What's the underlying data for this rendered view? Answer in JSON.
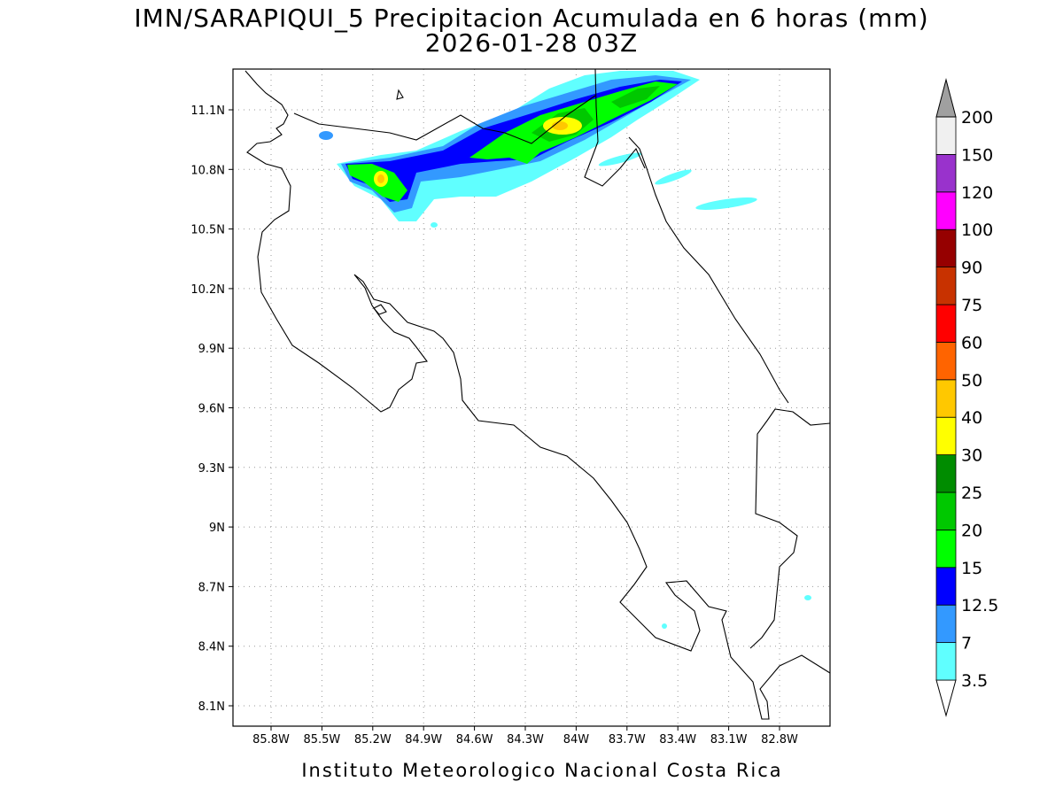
{
  "header": {
    "title": "IMN/SARAPIQUI_5 Precipitacion Acumulada en 6 horas (mm)",
    "subtitle": "2026-01-28 03Z"
  },
  "map": {
    "xticks": [
      "85.8W",
      "85.5W",
      "85.2W",
      "84.9W",
      "84.6W",
      "84.3W",
      "84W",
      "83.7W",
      "83.4W",
      "83.1W",
      "82.8W"
    ],
    "yticks": [
      "11.1N",
      "10.8N",
      "10.5N",
      "10.2N",
      "9.9N",
      "9.6N",
      "9.3N",
      "9N",
      "8.7N",
      "8.4N",
      "8.1N"
    ]
  },
  "colorbar": {
    "levels": [
      3.5,
      7,
      12.5,
      15,
      20,
      25,
      30,
      40,
      50,
      60,
      75,
      90,
      100,
      120,
      150,
      200
    ],
    "under_color": "#ffffff",
    "colors": [
      "#60ffff",
      "#3399ff",
      "#0000ff",
      "#00ff00",
      "#00c800",
      "#008c00",
      "#ffff00",
      "#ffc800",
      "#ff6400",
      "#ff0000",
      "#c83200",
      "#960000",
      "#ff00ff",
      "#9932cc",
      "#f0f0f0"
    ],
    "over_color": "#a0a0a0"
  },
  "footer": "Instituto Meteorologico Nacional Costa Rica"
}
